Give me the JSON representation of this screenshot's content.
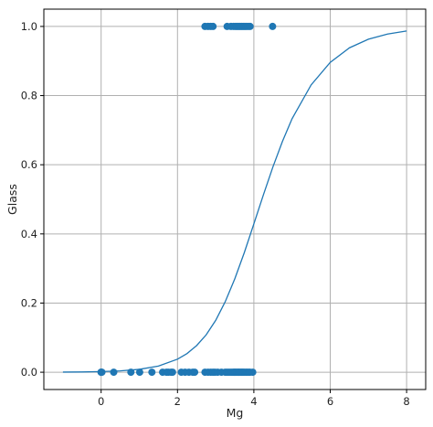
{
  "chart_data": {
    "type": "scatter",
    "title": "",
    "xlabel": "Mg",
    "ylabel": "Glass",
    "xlim": [
      -1.5,
      8.5
    ],
    "ylim": [
      -0.05,
      1.05
    ],
    "x_ticks": [
      0,
      2,
      4,
      6,
      8
    ],
    "y_ticks": [
      0.0,
      0.2,
      0.4,
      0.6,
      0.8,
      1.0
    ],
    "x_tick_labels": [
      "0",
      "2",
      "4",
      "6",
      "8"
    ],
    "y_tick_labels": [
      "0.0",
      "0.2",
      "0.4",
      "0.6",
      "0.8",
      "1.0"
    ],
    "grid": true,
    "colors": {
      "points": "#1f77b4",
      "curve": "#1f77b4",
      "grid": "#b0b0b0",
      "frame": "#000000"
    },
    "series": [
      {
        "type": "scatter",
        "x": [
          0.0,
          0.0,
          0.02,
          0.33,
          0.78,
          1.01,
          1.33,
          1.61,
          1.71,
          1.76,
          1.83,
          1.87,
          2.1,
          2.2,
          2.3,
          2.4,
          2.45,
          2.72,
          2.8,
          2.87,
          2.93,
          2.98,
          3.05,
          3.15,
          3.25,
          3.3,
          3.35,
          3.4,
          3.45,
          3.48,
          3.5,
          3.52,
          3.55,
          3.58,
          3.6,
          3.62,
          3.65,
          3.68,
          3.7,
          3.73,
          3.76,
          3.8,
          3.83,
          3.87,
          3.9,
          3.97,
          2.72,
          2.8,
          2.87,
          2.93,
          3.3,
          3.4,
          3.47,
          3.52,
          3.56,
          3.6,
          3.64,
          3.68,
          3.72,
          3.76,
          3.8,
          3.85,
          3.9,
          4.49
        ],
        "y": [
          0,
          0,
          0,
          0,
          0,
          0,
          0,
          0,
          0,
          0,
          0,
          0,
          0,
          0,
          0,
          0,
          0,
          0,
          0,
          0,
          0,
          0,
          0,
          0,
          0,
          0,
          0,
          0,
          0,
          0,
          0,
          0,
          0,
          0,
          0,
          0,
          0,
          0,
          0,
          0,
          0,
          0,
          0,
          0,
          0,
          0,
          1,
          1,
          1,
          1,
          1,
          1,
          1,
          1,
          1,
          1,
          1,
          1,
          1,
          1,
          1,
          1,
          1,
          1
        ]
      },
      {
        "type": "line",
        "x": [
          -1.0,
          -0.5,
          0.0,
          0.5,
          1.0,
          1.5,
          2.0,
          2.25,
          2.5,
          2.75,
          3.0,
          3.25,
          3.5,
          3.75,
          4.0,
          4.25,
          4.5,
          4.75,
          5.0,
          5.5,
          6.0,
          6.5,
          7.0,
          7.5,
          8.0
        ],
        "y": [
          0.0004,
          0.0008,
          0.0018,
          0.0038,
          0.0083,
          0.0178,
          0.0378,
          0.054,
          0.077,
          0.108,
          0.15,
          0.204,
          0.27,
          0.346,
          0.429,
          0.513,
          0.594,
          0.668,
          0.733,
          0.831,
          0.896,
          0.938,
          0.963,
          0.978,
          0.987
        ]
      }
    ]
  }
}
